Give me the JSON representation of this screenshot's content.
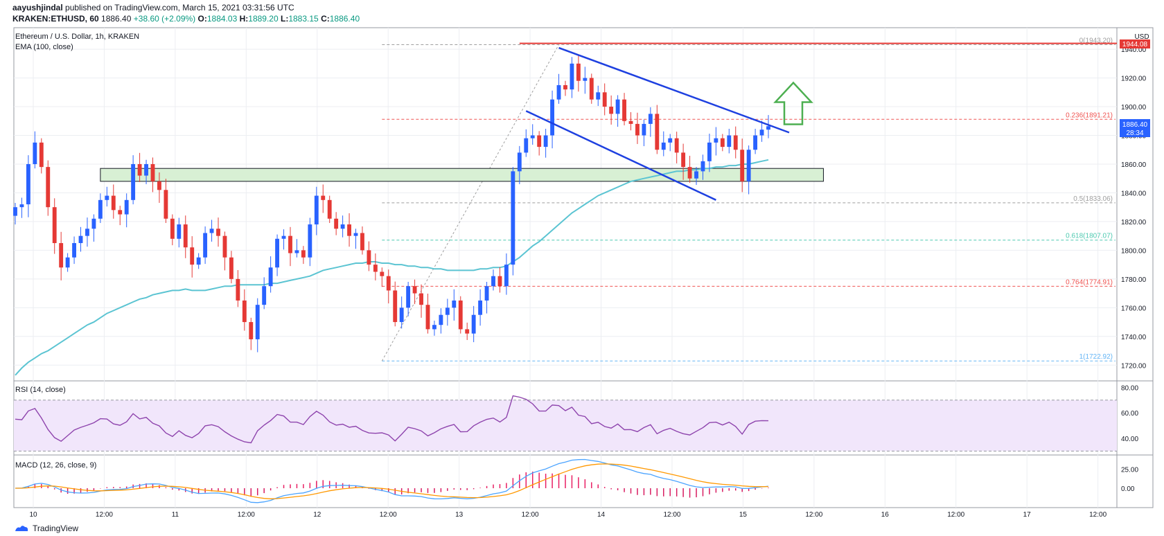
{
  "header": {
    "author": "aayushjindal",
    "published": "published on TradingView.com, March 15, 2021 03:31:56 UTC",
    "symbol": "KRAKEN:ETHUSD, 60",
    "last": "1886.40",
    "change": "+38.60 (+2.09%)",
    "o_label": "O:",
    "o": "1884.03",
    "h_label": "H:",
    "h": "1889.20",
    "l_label": "L:",
    "l": "1883.15",
    "c_label": "C:",
    "c": "1886.40"
  },
  "legend": {
    "title": "Ethereum / U.S. Dollar, 1h, KRAKEN",
    "ema": "EMA (100, close)",
    "rsi": "RSI (14, close)",
    "macd": "MACD (12, 26, close, 9)"
  },
  "currency_label": "USD",
  "price_tag": "1944.08",
  "current_tag": {
    "price": "1886.40",
    "countdown": "28:34"
  },
  "fib_levels": [
    {
      "label": "0(1943.20)",
      "value": 1943.2,
      "color": "#9e9e9e"
    },
    {
      "label": "0.236(1891.21)",
      "value": 1891.21,
      "color": "#ef5350"
    },
    {
      "label": "0.5(1833.06)",
      "value": 1833.06,
      "color": "#9e9e9e"
    },
    {
      "label": "0.618(1807.07)",
      "value": 1807.07,
      "color": "#4dc9b0"
    },
    {
      "label": "0.764(1774.91)",
      "value": 1774.91,
      "color": "#ef5350"
    },
    {
      "label": "1(1722.92)",
      "value": 1722.92,
      "color": "#64b5f6"
    }
  ],
  "footer": {
    "brand": "TradingView"
  },
  "colors": {
    "up": "#2962ff",
    "down": "#e53935",
    "ema": "#5bc4d2",
    "rsi": "#8e44ad",
    "macd": "#4aa3ff",
    "signal": "#ff9800",
    "zone": "#d8f0d4",
    "arrow": "#4caf50",
    "channel": "#1e40e0"
  },
  "chart_data": [
    {
      "type": "candlestick",
      "title": "Ethereum / U.S. Dollar, 1h, KRAKEN",
      "x_tick_labels": [
        "10",
        "12:00",
        "11",
        "12:00",
        "12",
        "12:00",
        "13",
        "12:00",
        "14",
        "12:00",
        "15",
        "12:00",
        "16",
        "12:00",
        "17",
        "12:00"
      ],
      "y_ticks": [
        1720,
        1740,
        1760,
        1780,
        1800,
        1820,
        1840,
        1860,
        1880,
        1900,
        1920,
        1940
      ],
      "ylim": [
        1710,
        1955
      ],
      "close": [
        1830,
        1832,
        1860,
        1875,
        1858,
        1830,
        1805,
        1788,
        1795,
        1805,
        1810,
        1815,
        1822,
        1835,
        1838,
        1828,
        1825,
        1835,
        1860,
        1852,
        1860,
        1848,
        1842,
        1822,
        1808,
        1818,
        1802,
        1790,
        1795,
        1812,
        1815,
        1810,
        1795,
        1780,
        1765,
        1750,
        1738,
        1762,
        1775,
        1788,
        1808,
        1810,
        1798,
        1800,
        1795,
        1818,
        1838,
        1835,
        1822,
        1815,
        1818,
        1810,
        1812,
        1800,
        1790,
        1785,
        1782,
        1772,
        1750,
        1760,
        1775,
        1770,
        1762,
        1745,
        1748,
        1755,
        1760,
        1765,
        1745,
        1742,
        1755,
        1765,
        1775,
        1782,
        1775,
        1790,
        1855,
        1868,
        1878,
        1880,
        1872,
        1880,
        1905,
        1915,
        1912,
        1930,
        1918,
        1920,
        1905,
        1910,
        1900,
        1895,
        1905,
        1890,
        1888,
        1880,
        1888,
        1895,
        1870,
        1875,
        1878,
        1868,
        1858,
        1850,
        1855,
        1862,
        1875,
        1878,
        1872,
        1880,
        1870,
        1848,
        1870,
        1880,
        1884,
        1886.4
      ],
      "ema100": [
        1713,
        1718,
        1722,
        1725,
        1728,
        1730,
        1733,
        1736,
        1739,
        1742,
        1745,
        1748,
        1750,
        1753,
        1756,
        1758,
        1760,
        1762,
        1764,
        1766,
        1767,
        1769,
        1770,
        1771,
        1772,
        1772,
        1773,
        1772,
        1772,
        1772,
        1773,
        1774,
        1775,
        1775,
        1776,
        1776,
        1776,
        1776,
        1776,
        1777,
        1777,
        1778,
        1779,
        1780,
        1781,
        1782,
        1784,
        1786,
        1787,
        1788,
        1789,
        1790,
        1791,
        1791,
        1792,
        1792,
        1791,
        1791,
        1790,
        1790,
        1789,
        1789,
        1788,
        1788,
        1787,
        1787,
        1786,
        1786,
        1786,
        1786,
        1786,
        1787,
        1787,
        1788,
        1788,
        1789,
        1792,
        1795,
        1799,
        1803,
        1806,
        1810,
        1814,
        1818,
        1822,
        1826,
        1829,
        1832,
        1835,
        1838,
        1840,
        1842,
        1844,
        1846,
        1848,
        1849,
        1850,
        1851,
        1852,
        1853,
        1854,
        1855,
        1855,
        1856,
        1856,
        1857,
        1857,
        1858,
        1858,
        1859,
        1859,
        1860,
        1860,
        1861,
        1862,
        1863
      ],
      "horizontal_levels": [
        1943.2,
        1891.21,
        1833.06,
        1807.07,
        1774.91,
        1722.92
      ],
      "support_zone": [
        1848,
        1857
      ],
      "last_price": 1886.4
    },
    {
      "type": "line",
      "title": "RSI (14, close)",
      "y_ticks": [
        40,
        60,
        80
      ],
      "ylim": [
        28,
        84
      ],
      "bands": [
        30,
        70
      ]
    },
    {
      "type": "line",
      "title": "MACD (12, 26, close, 9)",
      "y_ticks": [
        0,
        25
      ],
      "series": [
        {
          "name": "MACD"
        },
        {
          "name": "Signal"
        },
        {
          "name": "Histogram"
        }
      ]
    }
  ]
}
